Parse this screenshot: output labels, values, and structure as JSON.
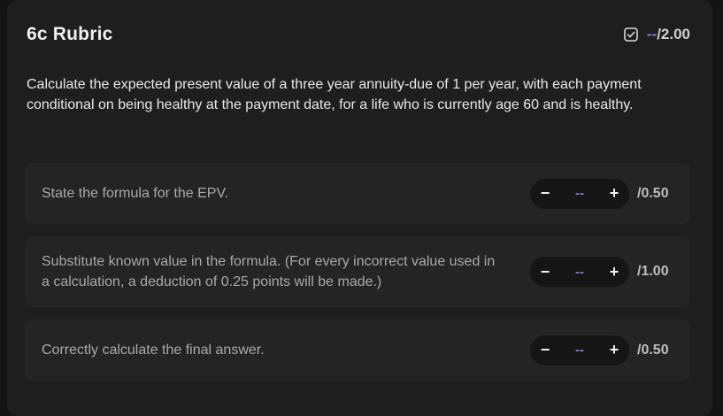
{
  "rubric": {
    "title": "6c Rubric",
    "total_score": "--",
    "total_max": "/2.00",
    "check_icon": "checkbox-checked-icon",
    "prompt": "Calculate the expected present value of a three year annuity-due of 1 per year, with each payment conditional on being healthy at the payment date, for a life who is currently age 60 and is healthy."
  },
  "criteria": [
    {
      "text": "State the formula for the EPV.",
      "minus": "−",
      "value": "--",
      "plus": "+",
      "max": "/0.50"
    },
    {
      "text": "Substitute known value in the formula. (For every incorrect value used in a calculation, a deduction of 0.25 points will be made.)",
      "minus": "−",
      "value": "--",
      "plus": "+",
      "max": "/1.00"
    },
    {
      "text": "Correctly calculate the final answer.",
      "minus": "−",
      "value": "--",
      "plus": "+",
      "max": "/0.50"
    }
  ],
  "colors": {
    "background": "#141414",
    "panel": "#1e1e1e",
    "accent": "#7f7fd6"
  }
}
